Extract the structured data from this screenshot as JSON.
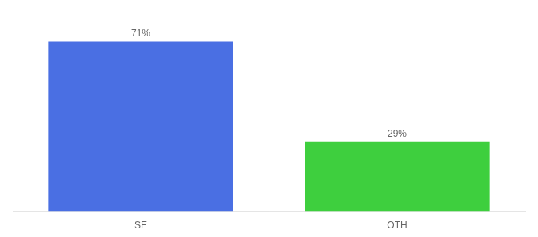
{
  "chart_data": {
    "type": "bar",
    "categories": [
      "SE",
      "OTH"
    ],
    "values": [
      71,
      29
    ],
    "value_labels": [
      "71%",
      "29%"
    ],
    "colors": [
      "#4a6fe3",
      "#3ecf3e"
    ],
    "ylim": [
      0,
      85
    ],
    "yticks": [],
    "grid": false,
    "data_labels": true,
    "tick_labels": "x"
  }
}
